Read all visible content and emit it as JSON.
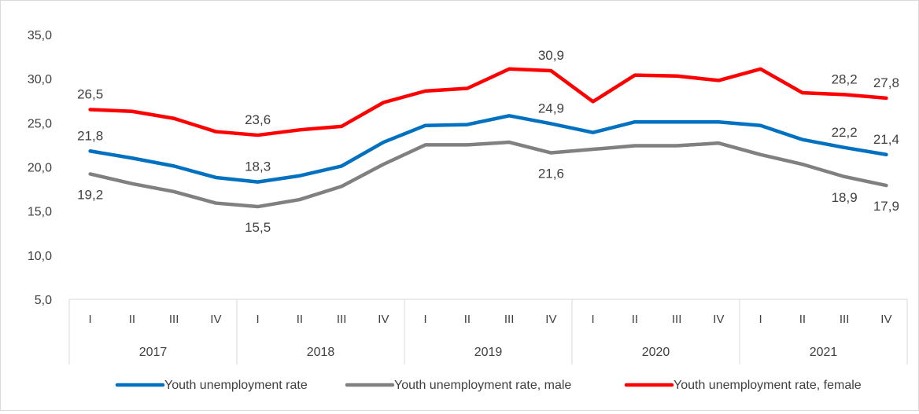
{
  "chart_data": {
    "type": "line",
    "title": "",
    "xlabel": "",
    "ylabel": "",
    "ylim": [
      5,
      35
    ],
    "yticks": [
      "5,0",
      "10,0",
      "15,0",
      "20,0",
      "25,0",
      "30,0",
      "35,0"
    ],
    "ytick_values": [
      5,
      10,
      15,
      20,
      25,
      30,
      35
    ],
    "years": [
      "2017",
      "2018",
      "2019",
      "2020",
      "2021"
    ],
    "quarters": [
      "I",
      "II",
      "III",
      "IV"
    ],
    "grid": false,
    "legend_position": "bottom",
    "series": [
      {
        "name": "Youth unemployment rate",
        "color": "#0070c0",
        "values": [
          21.8,
          21.0,
          20.1,
          18.8,
          18.3,
          19.0,
          20.1,
          22.8,
          24.7,
          24.8,
          25.8,
          24.9,
          23.9,
          25.1,
          25.1,
          25.1,
          24.7,
          23.1,
          22.2,
          21.4
        ],
        "labels": [
          {
            "index": 0,
            "text": "21,8",
            "pos": "above"
          },
          {
            "index": 4,
            "text": "18,3",
            "pos": "above"
          },
          {
            "index": 11,
            "text": "24,9",
            "pos": "above"
          },
          {
            "index": 18,
            "text": "22,2",
            "pos": "above"
          },
          {
            "index": 19,
            "text": "21,4",
            "pos": "above"
          }
        ]
      },
      {
        "name": "Youth unemployment rate, male",
        "color": "#808080",
        "values": [
          19.2,
          18.1,
          17.2,
          15.9,
          15.5,
          16.3,
          17.8,
          20.3,
          22.5,
          22.5,
          22.8,
          21.6,
          22.0,
          22.4,
          22.4,
          22.7,
          21.4,
          20.3,
          18.9,
          17.9
        ],
        "labels": [
          {
            "index": 0,
            "text": "19,2",
            "pos": "below"
          },
          {
            "index": 4,
            "text": "15,5",
            "pos": "below"
          },
          {
            "index": 11,
            "text": "21,6",
            "pos": "below"
          },
          {
            "index": 18,
            "text": "18,9",
            "pos": "below"
          },
          {
            "index": 19,
            "text": "17,9",
            "pos": "below"
          }
        ]
      },
      {
        "name": "Youth unemployment rate, female",
        "color": "#ff0000",
        "values": [
          26.5,
          26.3,
          25.5,
          24.0,
          23.6,
          24.2,
          24.6,
          27.3,
          28.6,
          28.9,
          31.1,
          30.9,
          27.4,
          30.4,
          30.3,
          29.8,
          31.1,
          28.4,
          28.2,
          27.8
        ],
        "labels": [
          {
            "index": 0,
            "text": "26,5",
            "pos": "above"
          },
          {
            "index": 4,
            "text": "23,6",
            "pos": "above"
          },
          {
            "index": 11,
            "text": "30,9",
            "pos": "above"
          },
          {
            "index": 18,
            "text": "28,2",
            "pos": "above"
          },
          {
            "index": 19,
            "text": "27,8",
            "pos": "above"
          }
        ]
      }
    ]
  }
}
